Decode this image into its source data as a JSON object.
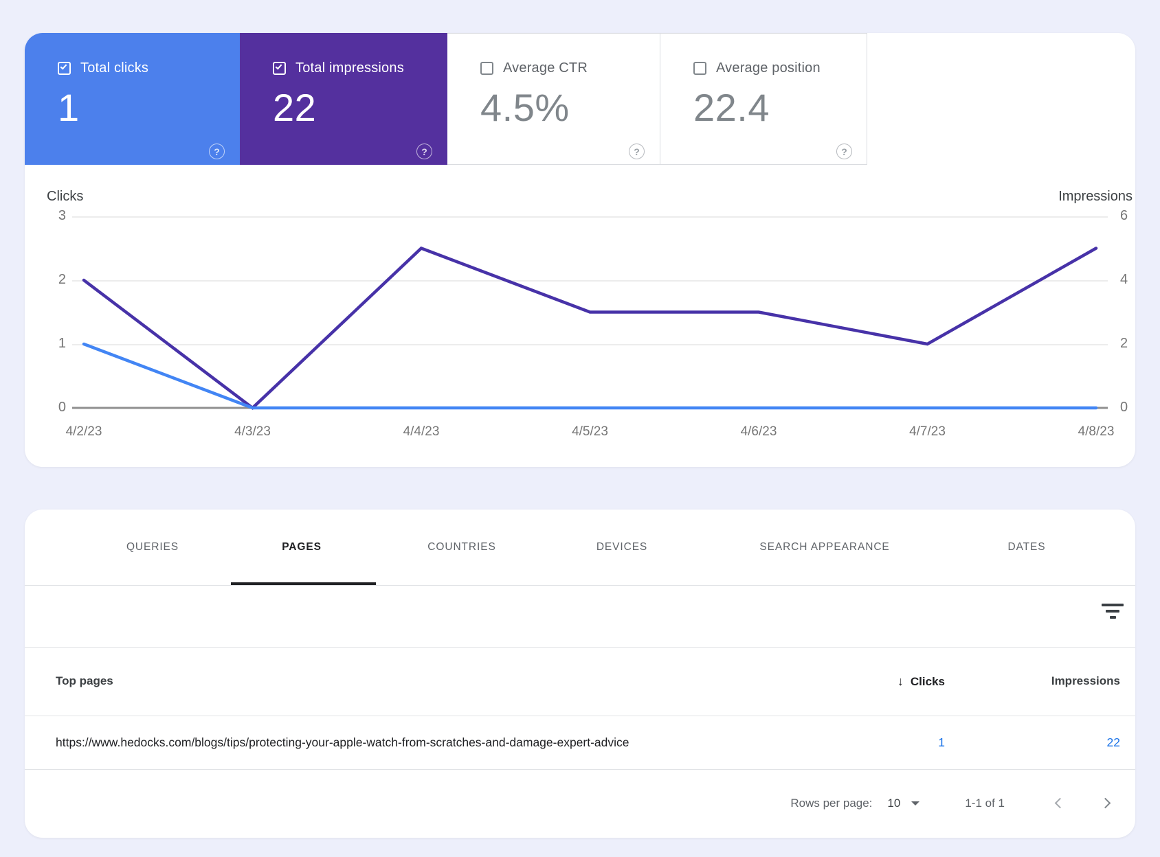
{
  "metrics": {
    "help_glyph": "?",
    "cards": [
      {
        "label": "Total clicks",
        "value": "1",
        "checked": true,
        "color": "#4c80ec"
      },
      {
        "label": "Total impressions",
        "value": "22",
        "checked": true,
        "color": "#54309e"
      },
      {
        "label": "Average CTR",
        "value": "4.5%",
        "checked": false,
        "color": "#ffffff"
      },
      {
        "label": "Average position",
        "value": "22.4",
        "checked": false,
        "color": "#ffffff"
      }
    ]
  },
  "chart_data": {
    "type": "line",
    "categories": [
      "4/2/23",
      "4/3/23",
      "4/4/23",
      "4/5/23",
      "4/6/23",
      "4/7/23",
      "4/8/23"
    ],
    "series": [
      {
        "name": "Impressions",
        "axis": "right",
        "color": "#4732a8",
        "values": [
          4,
          0,
          5,
          3,
          3,
          2,
          5
        ]
      },
      {
        "name": "Clicks",
        "axis": "left",
        "color": "#4285f4",
        "values": [
          1,
          0,
          0,
          0,
          0,
          0,
          0
        ]
      }
    ],
    "left_axis": {
      "label": "Clicks",
      "ticks": [
        "3",
        "2",
        "1",
        "0"
      ],
      "max": 3
    },
    "right_axis": {
      "label": "Impressions",
      "ticks": [
        "6",
        "4",
        "2",
        "0"
      ],
      "max": 6
    },
    "grid": true,
    "legend_position": "none"
  },
  "tabs": [
    {
      "label": "QUERIES",
      "active": false
    },
    {
      "label": "PAGES",
      "active": true
    },
    {
      "label": "COUNTRIES",
      "active": false
    },
    {
      "label": "DEVICES",
      "active": false
    },
    {
      "label": "SEARCH APPEARANCE",
      "active": false
    },
    {
      "label": "DATES",
      "active": false
    }
  ],
  "table": {
    "columns": {
      "pages": "Top pages",
      "clicks": "Clicks",
      "impressions": "Impressions"
    },
    "sort_glyph": "↓",
    "rows": [
      {
        "page": "https://www.hedocks.com/blogs/tips/protecting-your-apple-watch-from-scratches-and-damage-expert-advice",
        "clicks": "1",
        "impressions": "22"
      }
    ]
  },
  "pagination": {
    "rows_per_page_label": "Rows per page:",
    "rows_per_page_value": "10",
    "range_label": "1-1 of 1"
  }
}
